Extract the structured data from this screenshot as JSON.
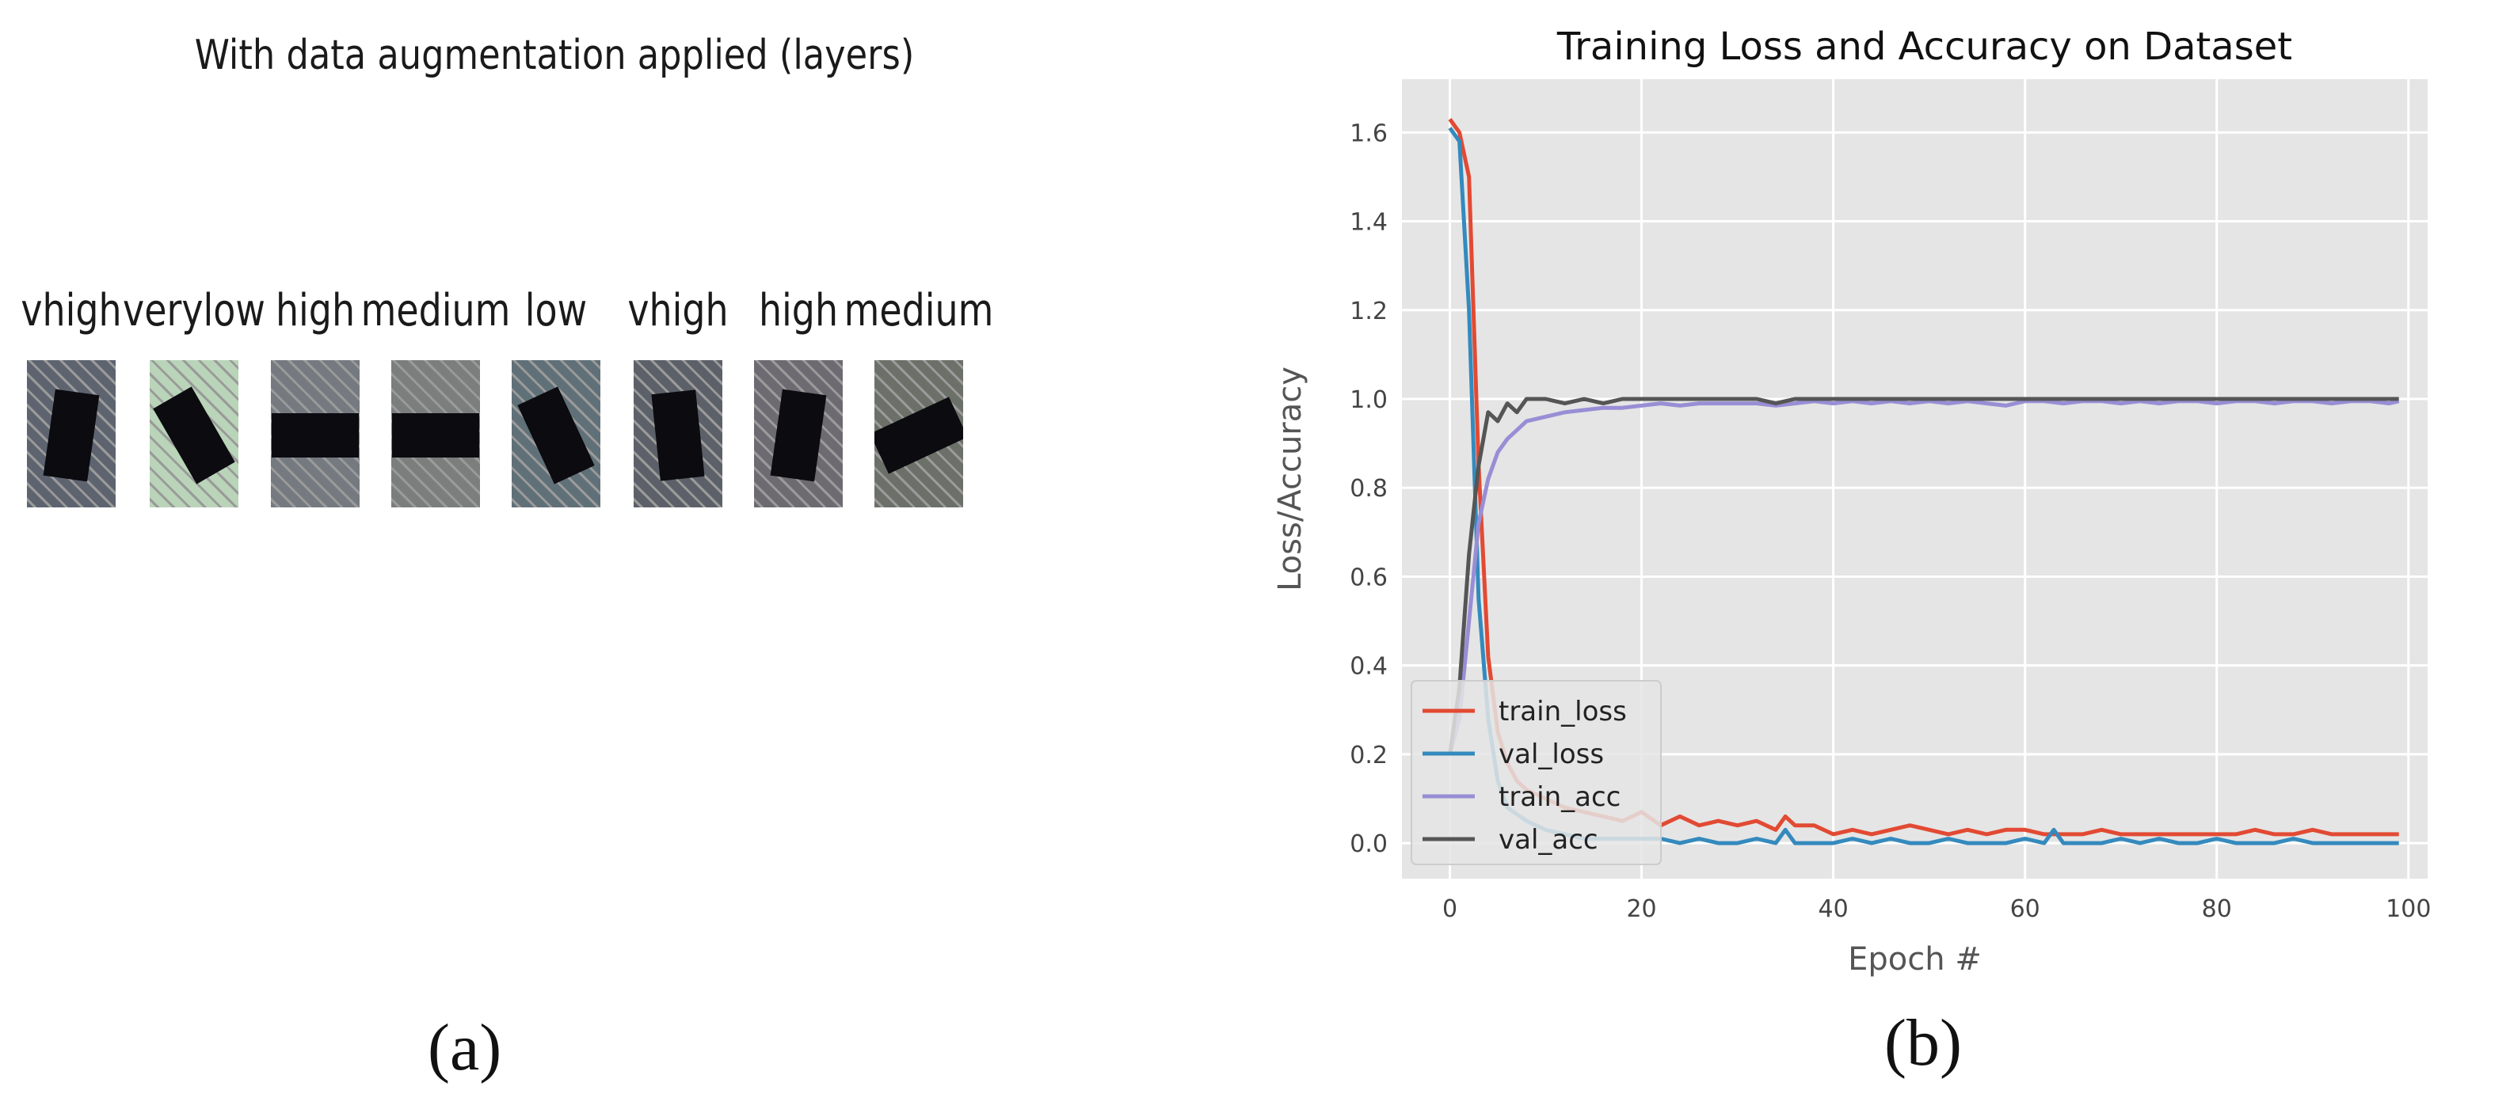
{
  "panel_a": {
    "title": "With data augmentation applied (layers)",
    "caption": "(a)",
    "thumbnails": [
      {
        "label": "vhigh",
        "bg": "#5d6470",
        "angle": 8
      },
      {
        "label": "verylow",
        "bg": "#b9d4b8",
        "angle": -30
      },
      {
        "label": "high",
        "bg": "#747a80",
        "angle": 90
      },
      {
        "label": "medium",
        "bg": "#7a7e7c",
        "angle": 90
      },
      {
        "label": "low",
        "bg": "#607078",
        "angle": -25
      },
      {
        "label": "vhigh",
        "bg": "#5c6068",
        "angle": -6
      },
      {
        "label": "high",
        "bg": "#6d6a72",
        "angle": 8
      },
      {
        "label": "medium",
        "bg": "#6b7068",
        "angle": 65
      }
    ]
  },
  "panel_b": {
    "caption": "(b)"
  },
  "chart_data": {
    "type": "line",
    "title": "Training Loss and Accuracy on Dataset",
    "xlabel": "Epoch #",
    "ylabel": "Loss/Accuracy",
    "xlim": [
      -5,
      102
    ],
    "ylim": [
      -0.08,
      1.72
    ],
    "xticks": [
      0,
      20,
      40,
      60,
      80,
      100
    ],
    "yticks": [
      0.0,
      0.2,
      0.4,
      0.6,
      0.8,
      1.0,
      1.2,
      1.4,
      1.6
    ],
    "grid": true,
    "legend_position": "lower-left",
    "background": "#e5e5e5",
    "series": [
      {
        "name": "train_loss",
        "color": "#e24a33",
        "x": [
          0,
          1,
          2,
          3,
          4,
          5,
          6,
          7,
          8,
          10,
          12,
          14,
          16,
          18,
          20,
          22,
          24,
          26,
          28,
          30,
          32,
          34,
          35,
          36,
          38,
          40,
          42,
          44,
          46,
          48,
          50,
          52,
          54,
          56,
          58,
          60,
          62,
          64,
          66,
          68,
          70,
          72,
          74,
          76,
          78,
          80,
          82,
          84,
          86,
          88,
          90,
          92,
          94,
          96,
          98,
          99
        ],
        "y": [
          1.63,
          1.6,
          1.5,
          0.85,
          0.42,
          0.25,
          0.18,
          0.14,
          0.12,
          0.1,
          0.08,
          0.07,
          0.06,
          0.05,
          0.07,
          0.04,
          0.06,
          0.04,
          0.05,
          0.04,
          0.05,
          0.03,
          0.06,
          0.04,
          0.04,
          0.02,
          0.03,
          0.02,
          0.03,
          0.04,
          0.03,
          0.02,
          0.03,
          0.02,
          0.03,
          0.03,
          0.02,
          0.02,
          0.02,
          0.03,
          0.02,
          0.02,
          0.02,
          0.02,
          0.02,
          0.02,
          0.02,
          0.03,
          0.02,
          0.02,
          0.03,
          0.02,
          0.02,
          0.02,
          0.02,
          0.02
        ]
      },
      {
        "name": "val_loss",
        "color": "#348abd",
        "x": [
          0,
          1,
          2,
          3,
          4,
          5,
          6,
          8,
          10,
          12,
          14,
          16,
          18,
          20,
          22,
          24,
          26,
          28,
          30,
          32,
          34,
          35,
          36,
          38,
          40,
          42,
          44,
          46,
          48,
          50,
          52,
          54,
          56,
          58,
          60,
          62,
          63,
          64,
          66,
          68,
          70,
          72,
          74,
          76,
          78,
          80,
          82,
          84,
          86,
          88,
          90,
          92,
          94,
          96,
          98,
          99
        ],
        "y": [
          1.61,
          1.58,
          1.2,
          0.55,
          0.28,
          0.14,
          0.08,
          0.05,
          0.03,
          0.02,
          0.01,
          0.01,
          0.01,
          0.01,
          0.01,
          0.0,
          0.01,
          0.0,
          0.0,
          0.01,
          0.0,
          0.03,
          0.0,
          0.0,
          0.0,
          0.01,
          0.0,
          0.01,
          0.0,
          0.0,
          0.01,
          0.0,
          0.0,
          0.0,
          0.01,
          0.0,
          0.03,
          0.0,
          0.0,
          0.0,
          0.01,
          0.0,
          0.01,
          0.0,
          0.0,
          0.01,
          0.0,
          0.0,
          0.0,
          0.01,
          0.0,
          0.0,
          0.0,
          0.0,
          0.0,
          0.0
        ]
      },
      {
        "name": "train_acc",
        "color": "#988ed5",
        "x": [
          0,
          1,
          2,
          3,
          4,
          5,
          6,
          7,
          8,
          10,
          12,
          14,
          16,
          18,
          20,
          22,
          24,
          26,
          28,
          30,
          32,
          34,
          36,
          38,
          40,
          42,
          44,
          46,
          48,
          50,
          52,
          54,
          56,
          58,
          60,
          62,
          64,
          66,
          68,
          70,
          72,
          74,
          76,
          78,
          80,
          82,
          84,
          86,
          88,
          90,
          92,
          94,
          96,
          98,
          99
        ],
        "y": [
          0.2,
          0.28,
          0.5,
          0.72,
          0.82,
          0.88,
          0.91,
          0.93,
          0.95,
          0.96,
          0.97,
          0.975,
          0.98,
          0.98,
          0.985,
          0.99,
          0.985,
          0.99,
          0.99,
          0.99,
          0.99,
          0.985,
          0.99,
          0.995,
          0.99,
          0.995,
          0.99,
          0.995,
          0.99,
          0.995,
          0.99,
          0.995,
          0.99,
          0.985,
          0.995,
          0.995,
          0.99,
          0.995,
          0.995,
          0.99,
          0.995,
          0.99,
          0.995,
          0.995,
          0.99,
          0.995,
          0.995,
          0.99,
          0.995,
          0.995,
          0.99,
          0.995,
          0.995,
          0.99,
          0.995
        ]
      },
      {
        "name": "val_acc",
        "color": "#555555",
        "x": [
          0,
          1,
          2,
          3,
          4,
          5,
          6,
          7,
          8,
          10,
          12,
          14,
          16,
          18,
          20,
          22,
          24,
          26,
          28,
          30,
          32,
          34,
          36,
          38,
          40,
          42,
          44,
          46,
          48,
          50,
          52,
          54,
          56,
          58,
          60,
          62,
          64,
          66,
          68,
          70,
          72,
          74,
          76,
          78,
          80,
          82,
          84,
          86,
          88,
          90,
          92,
          94,
          96,
          98,
          99
        ],
        "y": [
          0.2,
          0.35,
          0.65,
          0.85,
          0.97,
          0.95,
          0.99,
          0.97,
          1.0,
          1.0,
          0.99,
          1.0,
          0.99,
          1.0,
          1.0,
          1.0,
          1.0,
          1.0,
          1.0,
          1.0,
          1.0,
          0.99,
          1.0,
          1.0,
          1.0,
          1.0,
          1.0,
          1.0,
          1.0,
          1.0,
          1.0,
          1.0,
          1.0,
          1.0,
          1.0,
          1.0,
          1.0,
          1.0,
          1.0,
          1.0,
          1.0,
          1.0,
          1.0,
          1.0,
          1.0,
          1.0,
          1.0,
          1.0,
          1.0,
          1.0,
          1.0,
          1.0,
          1.0,
          1.0,
          1.0
        ]
      }
    ]
  }
}
